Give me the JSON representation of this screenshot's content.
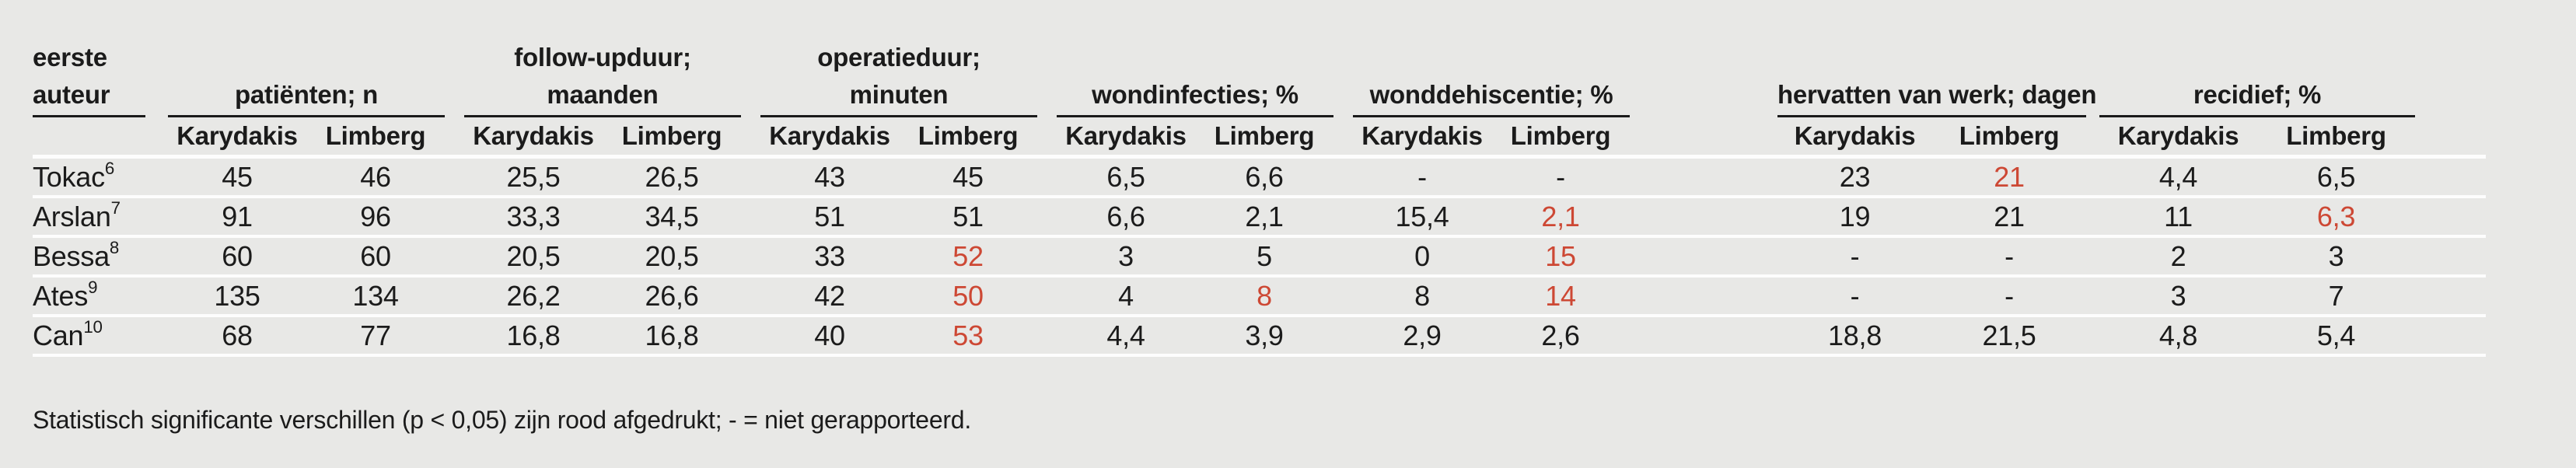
{
  "page": {
    "background_color": "#e8e8e6",
    "significant_red_color": "#cd4834",
    "text_color": "#1b1b1b"
  },
  "table": {
    "author_header": {
      "line1": "eerste",
      "line2": "auteur"
    },
    "groups": [
      {
        "line1": "",
        "line2": "patiënten; n"
      },
      {
        "line1": "follow-upduur;",
        "line2": "maanden"
      },
      {
        "line1": "operatieduur;",
        "line2": "minuten"
      },
      {
        "line1": "",
        "line2": "wondinfecties; %"
      },
      {
        "line1": "",
        "line2": "wonddehiscentie; %"
      },
      {
        "line1": "",
        "line2": "hervatten van werk; dagen"
      },
      {
        "line1": "",
        "line2": "recidief; %"
      }
    ],
    "subheaders": {
      "karydakis": "Karydakis",
      "limberg": "Limberg"
    },
    "rows": [
      {
        "author": "Tokac",
        "ref": "6",
        "values": [
          {
            "t": "45"
          },
          {
            "t": "46"
          },
          {
            "t": "25,5"
          },
          {
            "t": "26,5"
          },
          {
            "t": "43"
          },
          {
            "t": "45"
          },
          {
            "t": "6,5"
          },
          {
            "t": "6,6"
          },
          {
            "t": "-"
          },
          {
            "t": "-"
          },
          {
            "t": "23"
          },
          {
            "t": "21",
            "red": true
          },
          {
            "t": "4,4"
          },
          {
            "t": "6,5"
          }
        ]
      },
      {
        "author": "Arslan",
        "ref": "7",
        "values": [
          {
            "t": "91"
          },
          {
            "t": "96"
          },
          {
            "t": "33,3"
          },
          {
            "t": "34,5"
          },
          {
            "t": "51"
          },
          {
            "t": "51"
          },
          {
            "t": "6,6"
          },
          {
            "t": "2,1"
          },
          {
            "t": "15,4"
          },
          {
            "t": "2,1",
            "red": true
          },
          {
            "t": "19"
          },
          {
            "t": "21"
          },
          {
            "t": "11"
          },
          {
            "t": "6,3",
            "red": true
          }
        ]
      },
      {
        "author": "Bessa",
        "ref": "8",
        "values": [
          {
            "t": "60"
          },
          {
            "t": "60"
          },
          {
            "t": "20,5"
          },
          {
            "t": "20,5"
          },
          {
            "t": "33"
          },
          {
            "t": "52",
            "red": true
          },
          {
            "t": "3"
          },
          {
            "t": "5"
          },
          {
            "t": "0"
          },
          {
            "t": "15",
            "red": true
          },
          {
            "t": "-"
          },
          {
            "t": "-"
          },
          {
            "t": "2"
          },
          {
            "t": "3"
          }
        ]
      },
      {
        "author": "Ates",
        "ref": "9",
        "values": [
          {
            "t": "135"
          },
          {
            "t": "134"
          },
          {
            "t": "26,2"
          },
          {
            "t": "26,6"
          },
          {
            "t": "42"
          },
          {
            "t": "50",
            "red": true
          },
          {
            "t": "4"
          },
          {
            "t": "8",
            "red": true
          },
          {
            "t": "8"
          },
          {
            "t": "14",
            "red": true
          },
          {
            "t": "-"
          },
          {
            "t": "-"
          },
          {
            "t": "3"
          },
          {
            "t": "7"
          }
        ]
      },
      {
        "author": "Can",
        "ref": "10",
        "values": [
          {
            "t": "68"
          },
          {
            "t": "77"
          },
          {
            "t": "16,8"
          },
          {
            "t": "16,8"
          },
          {
            "t": "40"
          },
          {
            "t": "53",
            "red": true
          },
          {
            "t": "4,4"
          },
          {
            "t": "3,9"
          },
          {
            "t": "2,9"
          },
          {
            "t": "2,6"
          },
          {
            "t": "18,8"
          },
          {
            "t": "21,5"
          },
          {
            "t": "4,8"
          },
          {
            "t": "5,4"
          }
        ]
      }
    ]
  },
  "footnote": "Statistisch significante verschillen (p < 0,05) zijn rood afgedrukt; - = niet gerapporteerd."
}
